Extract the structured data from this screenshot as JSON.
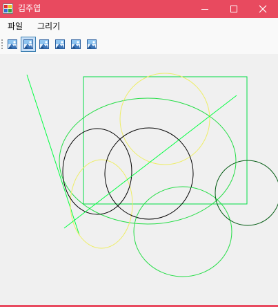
{
  "window": {
    "title": "김주엽",
    "accent_color": "#e84a5f"
  },
  "title_buttons": {
    "minimize_icon": "minimize-icon",
    "maximize_icon": "maximize-icon",
    "close_icon": "close-icon"
  },
  "menu": {
    "items": [
      {
        "label": "파일"
      },
      {
        "label": "그리기"
      }
    ]
  },
  "toolbar": {
    "buttons": [
      {
        "icon": "image-icon",
        "active": false
      },
      {
        "icon": "image-icon",
        "active": true
      },
      {
        "icon": "image-icon",
        "active": false
      },
      {
        "icon": "image-icon",
        "active": false
      },
      {
        "icon": "image-icon",
        "active": false
      },
      {
        "icon": "image-icon",
        "active": false
      }
    ]
  },
  "canvas": {
    "shape_colors": {
      "line": "#00ff40",
      "rectangle": "#00dd44",
      "ellipse_green": "#22dd44",
      "ellipse_black": "#000000",
      "ellipse_dark_green": "#005a10",
      "ellipse_yellow": "#eeee66"
    }
  }
}
